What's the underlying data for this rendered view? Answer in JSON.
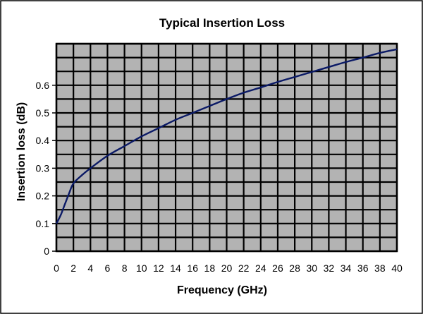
{
  "chart_data": {
    "type": "line",
    "title": "Typical Insertion Loss",
    "xlabel": "Frequency (GHz)",
    "ylabel": "Insertion loss (dB)",
    "xlim": [
      0,
      40
    ],
    "ylim": [
      0,
      0.75
    ],
    "xticks": [
      "0",
      "2",
      "4",
      "6",
      "8",
      "10",
      "12",
      "14",
      "16",
      "18",
      "20",
      "22",
      "24",
      "26",
      "28",
      "30",
      "32",
      "34",
      "36",
      "38",
      "40"
    ],
    "yticks": [
      "0",
      "0.1",
      "0.2",
      "0.3",
      "0.4",
      "0.5",
      "0.6"
    ],
    "grid": true,
    "legend": "none",
    "series": [
      {
        "x": [
          0,
          0.5,
          1,
          1.5,
          2,
          3,
          4,
          6,
          8,
          10,
          12,
          14,
          16,
          18,
          20,
          22,
          24,
          26,
          28,
          30,
          32,
          34,
          36,
          38,
          40
        ],
        "y": [
          0.1,
          0.13,
          0.17,
          0.21,
          0.245,
          0.275,
          0.3,
          0.345,
          0.38,
          0.415,
          0.445,
          0.475,
          0.5,
          0.525,
          0.55,
          0.573,
          0.592,
          0.612,
          0.63,
          0.648,
          0.666,
          0.684,
          0.7,
          0.717,
          0.73
        ]
      }
    ],
    "colors": {
      "plot_bg": "#b3b3b3",
      "grid": "#000000",
      "line": "#0b1a66",
      "frame": "#000000"
    }
  }
}
